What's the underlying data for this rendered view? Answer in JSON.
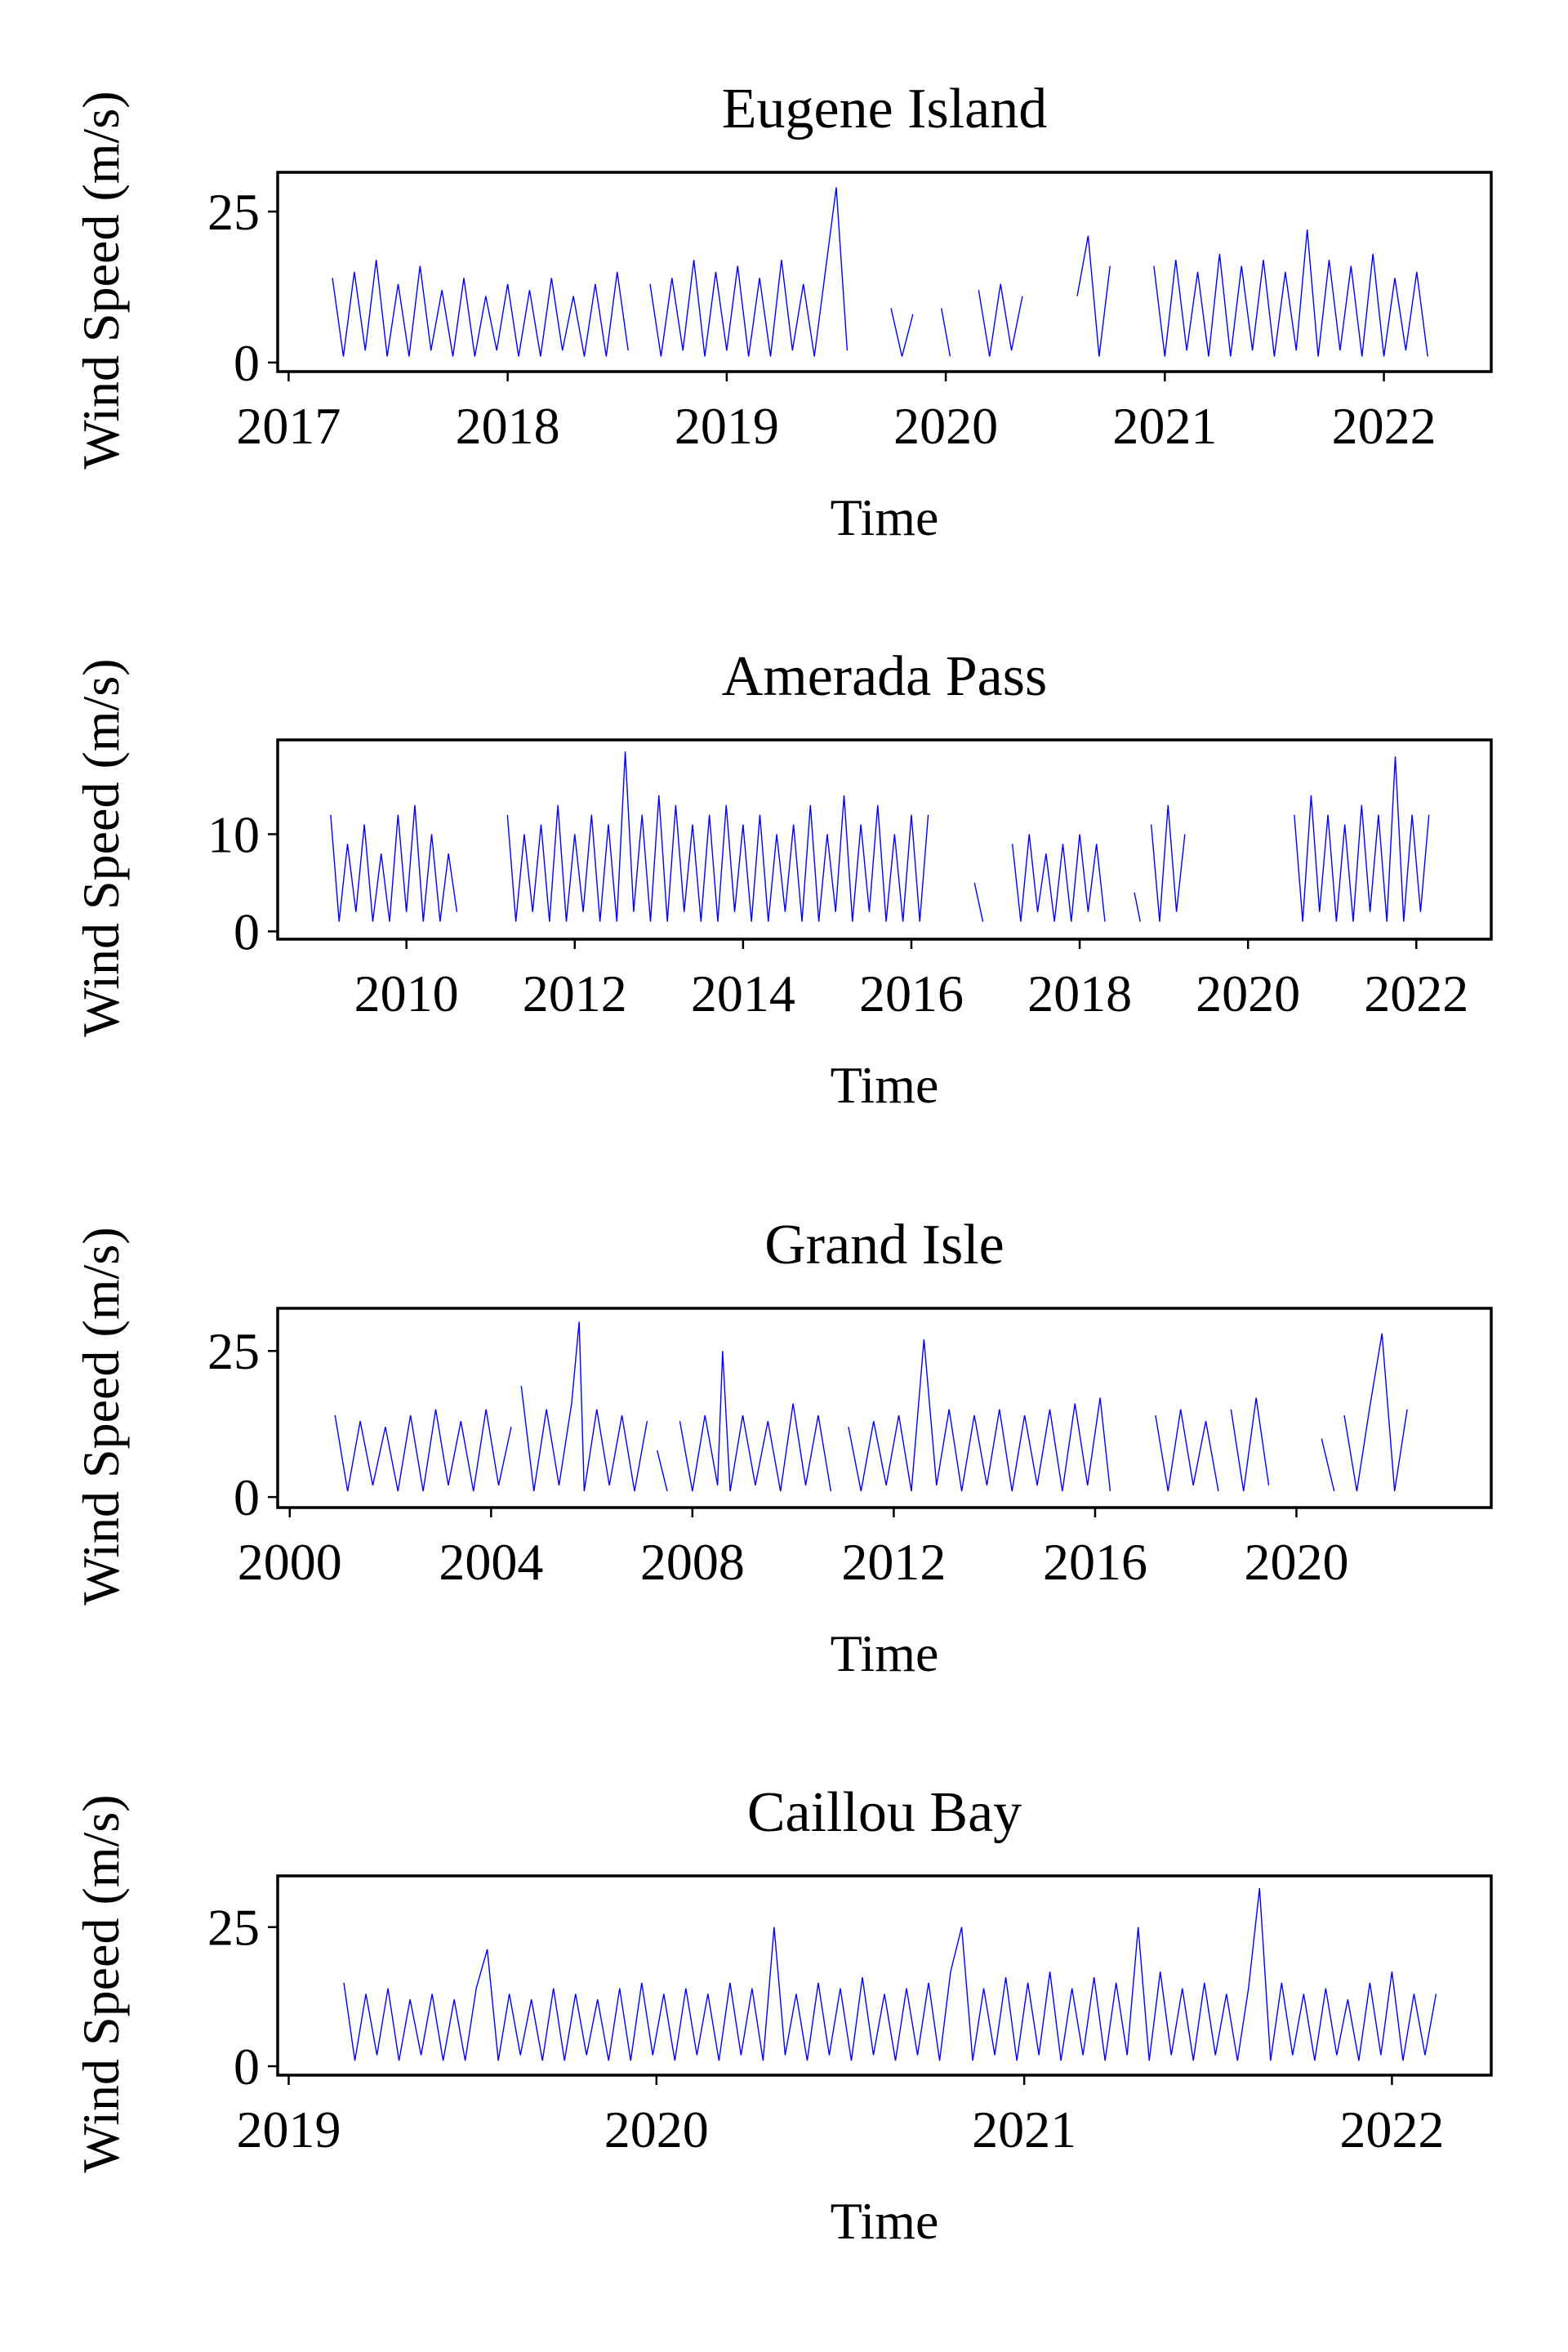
{
  "chart_data": [
    {
      "type": "line",
      "title": "Eugene Island",
      "xlabel": "Time",
      "ylabel": "Wind Speed (m/s)",
      "x": [
        2017.2,
        2017.25,
        2017.3,
        2017.35,
        2017.4,
        2017.45,
        2017.5,
        2017.55,
        2017.6,
        2017.65,
        2017.7,
        2017.75,
        2017.8,
        2017.85,
        2017.9,
        2017.95,
        2018,
        2018.05,
        2018.1,
        2018.15,
        2018.2,
        2018.25,
        2018.3,
        2018.35,
        2018.4,
        2018.45,
        2018.5,
        2018.55,
        2018.6,
        2018.65,
        2018.7,
        2018.75,
        2018.8,
        2018.85,
        2018.9,
        2018.95,
        2019,
        2019.05,
        2019.1,
        2019.15,
        2019.2,
        2019.25,
        2019.3,
        2019.35,
        2019.4,
        2019.45,
        2019.5,
        2019.55,
        2019.65,
        2019.75,
        2019.8,
        2019.85,
        2019.9,
        2019.98,
        2020.02,
        2020.08,
        2020.15,
        2020.2,
        2020.25,
        2020.3,
        2020.35,
        2020.45,
        2020.6,
        2020.65,
        2020.7,
        2020.75,
        2020.85,
        2020.95,
        2021,
        2021.05,
        2021.1,
        2021.15,
        2021.2,
        2021.25,
        2021.3,
        2021.35,
        2021.4,
        2021.45,
        2021.5,
        2021.55,
        2021.6,
        2021.65,
        2021.7,
        2021.75,
        2021.8,
        2021.85,
        2021.9,
        2021.95,
        2022,
        2022.05,
        2022.1,
        2022.15,
        2022.2
      ],
      "series": [
        {
          "color": "#0000ff",
          "values": [
            14,
            1,
            15,
            2,
            17,
            1,
            13,
            1,
            16,
            2,
            12,
            1,
            14,
            1,
            11,
            2,
            13,
            1,
            12,
            1,
            14,
            2,
            11,
            1,
            13,
            1,
            15,
            2,
            null,
            13,
            1,
            14,
            2,
            17,
            1,
            15,
            2,
            16,
            1,
            14,
            1,
            17,
            2,
            13,
            1,
            15,
            29,
            2,
            null,
            9,
            1,
            8,
            null,
            9,
            1,
            null,
            12,
            1,
            13,
            2,
            11,
            null,
            11,
            21,
            1,
            16,
            null,
            16,
            1,
            17,
            2,
            15,
            1,
            18,
            1,
            16,
            2,
            17,
            1,
            15,
            2,
            22,
            1,
            17,
            2,
            16,
            1,
            18,
            1,
            14,
            2,
            15,
            1
          ]
        }
      ],
      "xlim": [
        2016.95,
        2022.49
      ],
      "ylim": [
        -1.5,
        31.5
      ],
      "xticks": [
        2017,
        2018,
        2019,
        2020,
        2021,
        2022
      ],
      "yticks": [
        0,
        25
      ]
    },
    {
      "type": "line",
      "title": "Amerada Pass",
      "xlabel": "Time",
      "ylabel": "Wind Speed (m/s)",
      "x": [
        2009.1,
        2009.2,
        2009.3,
        2009.4,
        2009.5,
        2009.6,
        2009.7,
        2009.8,
        2009.9,
        2010,
        2010.1,
        2010.2,
        2010.3,
        2010.4,
        2010.5,
        2010.6,
        2010.9,
        2011.2,
        2011.3,
        2011.4,
        2011.5,
        2011.6,
        2011.7,
        2011.8,
        2011.9,
        2012,
        2012.1,
        2012.2,
        2012.3,
        2012.4,
        2012.5,
        2012.6,
        2012.7,
        2012.8,
        2012.9,
        2013,
        2013.1,
        2013.2,
        2013.3,
        2013.4,
        2013.5,
        2013.6,
        2013.7,
        2013.8,
        2013.9,
        2014,
        2014.1,
        2014.2,
        2014.3,
        2014.4,
        2014.5,
        2014.6,
        2014.7,
        2014.8,
        2014.9,
        2015,
        2015.1,
        2015.2,
        2015.3,
        2015.4,
        2015.5,
        2015.6,
        2015.7,
        2015.8,
        2015.9,
        2016,
        2016.1,
        2016.2,
        2016.5,
        2016.75,
        2016.85,
        2017.0,
        2017.2,
        2017.3,
        2017.4,
        2017.5,
        2017.6,
        2017.7,
        2017.8,
        2017.9,
        2018,
        2018.1,
        2018.2,
        2018.3,
        2018.5,
        2018.65,
        2018.72,
        2018.8,
        2018.85,
        2018.95,
        2019.05,
        2019.15,
        2019.25,
        2019.9,
        2020.55,
        2020.65,
        2020.75,
        2020.85,
        2020.95,
        2021.05,
        2021.15,
        2021.25,
        2021.35,
        2021.45,
        2021.55,
        2021.65,
        2021.75,
        2021.85,
        2021.95,
        2022.05,
        2022.15
      ],
      "series": [
        {
          "color": "#0000ff",
          "values": [
            12,
            1,
            9,
            2,
            11,
            1,
            8,
            1,
            12,
            2,
            13,
            1,
            10,
            1,
            8,
            2,
            null,
            12,
            1,
            10,
            2,
            11,
            1,
            13,
            1,
            10,
            2,
            12,
            1,
            11,
            1,
            18.5,
            2,
            12,
            1,
            14,
            1,
            13,
            2,
            11,
            1,
            12,
            1,
            13,
            2,
            11,
            1,
            12,
            1,
            10,
            2,
            11,
            1,
            13,
            1,
            10,
            2,
            14,
            1,
            11,
            2,
            13,
            1,
            10,
            1,
            12,
            1,
            12,
            null,
            5,
            1,
            null,
            9,
            1,
            10,
            2,
            8,
            1,
            9,
            1,
            10,
            2,
            9,
            1,
            null,
            4,
            1,
            null,
            11,
            1,
            13,
            2,
            10,
            null,
            12,
            1,
            14,
            2,
            12,
            1,
            11,
            1,
            13,
            2,
            12,
            1,
            18,
            1,
            12,
            2,
            12
          ]
        }
      ],
      "xlim": [
        2008.47,
        2022.89
      ],
      "ylim": [
        -0.8,
        19.7
      ],
      "xticks": [
        2010,
        2012,
        2014,
        2016,
        2018,
        2020,
        2022
      ],
      "yticks": [
        0,
        10
      ]
    },
    {
      "type": "line",
      "title": "Grand Isle",
      "xlabel": "Time",
      "ylabel": "Wind Speed (m/s)",
      "x": [
        2000.9,
        2001.15,
        2001.4,
        2001.65,
        2001.9,
        2002.15,
        2002.4,
        2002.65,
        2002.9,
        2003.15,
        2003.4,
        2003.65,
        2003.9,
        2004.15,
        2004.4,
        2004.5,
        2004.6,
        2004.85,
        2005.1,
        2005.35,
        2005.6,
        2005.75,
        2005.85,
        2006.1,
        2006.35,
        2006.6,
        2006.85,
        2007.1,
        2007.2,
        2007.3,
        2007.5,
        2007.62,
        2007.75,
        2008,
        2008.25,
        2008.5,
        2008.6,
        2008.75,
        2009,
        2009.25,
        2009.5,
        2009.75,
        2010,
        2010.25,
        2010.5,
        2010.75,
        2010.9,
        2011.1,
        2011.35,
        2011.6,
        2011.85,
        2012.1,
        2012.35,
        2012.6,
        2012.85,
        2013.1,
        2013.35,
        2013.6,
        2013.85,
        2014.1,
        2014.35,
        2014.6,
        2014.85,
        2015.1,
        2015.35,
        2015.6,
        2015.85,
        2016.1,
        2016.3,
        2016.8,
        2017.2,
        2017.45,
        2017.7,
        2017.95,
        2018.2,
        2018.45,
        2018.58,
        2018.7,
        2018.95,
        2019.2,
        2019.45,
        2020,
        2020.5,
        2020.75,
        2020.85,
        2020.95,
        2021.2,
        2021.45,
        2021.7,
        2021.95,
        2022.2
      ],
      "series": [
        {
          "color": "#0000ff",
          "values": [
            14,
            1,
            13,
            2,
            12,
            1,
            14,
            1,
            15,
            2,
            13,
            1,
            15,
            2,
            12,
            null,
            19,
            1,
            15,
            2,
            16,
            30,
            1,
            15,
            2,
            14,
            1,
            13,
            null,
            8,
            1,
            null,
            13,
            1,
            14,
            2,
            25,
            1,
            14,
            2,
            13,
            1,
            16,
            2,
            14,
            1,
            null,
            12,
            1,
            13,
            2,
            14,
            1,
            27,
            2,
            15,
            1,
            14,
            2,
            15,
            1,
            14,
            2,
            15,
            1,
            16,
            2,
            17,
            1,
            null,
            14,
            1,
            15,
            2,
            13,
            1,
            null,
            15,
            1,
            17,
            2,
            null,
            10,
            1,
            null,
            14,
            1,
            15,
            28,
            1,
            15
          ]
        }
      ],
      "xlim": [
        1999.76,
        2023.87
      ],
      "ylim": [
        -1.8,
        32.3
      ],
      "xticks": [
        2000,
        2004,
        2008,
        2012,
        2016,
        2020
      ],
      "yticks": [
        0,
        25
      ]
    },
    {
      "type": "line",
      "title": "Caillou Bay",
      "xlabel": "Time",
      "ylabel": "Wind Speed (m/s)",
      "x": [
        2019.15,
        2019.18,
        2019.21,
        2019.24,
        2019.27,
        2019.3,
        2019.33,
        2019.36,
        2019.39,
        2019.42,
        2019.45,
        2019.48,
        2019.51,
        2019.54,
        2019.57,
        2019.6,
        2019.63,
        2019.66,
        2019.69,
        2019.72,
        2019.75,
        2019.78,
        2019.81,
        2019.84,
        2019.87,
        2019.9,
        2019.93,
        2019.96,
        2019.99,
        2020.02,
        2020.05,
        2020.08,
        2020.11,
        2020.14,
        2020.17,
        2020.2,
        2020.23,
        2020.26,
        2020.29,
        2020.32,
        2020.35,
        2020.38,
        2020.41,
        2020.44,
        2020.47,
        2020.5,
        2020.53,
        2020.56,
        2020.59,
        2020.62,
        2020.65,
        2020.68,
        2020.71,
        2020.74,
        2020.77,
        2020.8,
        2020.83,
        2020.86,
        2020.89,
        2020.92,
        2020.95,
        2020.98,
        2021.01,
        2021.04,
        2021.07,
        2021.1,
        2021.13,
        2021.16,
        2021.19,
        2021.22,
        2021.25,
        2021.28,
        2021.31,
        2021.34,
        2021.37,
        2021.4,
        2021.43,
        2021.46,
        2021.49,
        2021.52,
        2021.55,
        2021.58,
        2021.61,
        2021.64,
        2021.67,
        2021.7,
        2021.73,
        2021.76,
        2021.79,
        2021.82,
        2021.85,
        2021.88,
        2021.91,
        2021.94,
        2021.97,
        2022,
        2022.03,
        2022.06,
        2022.09,
        2022.12
      ],
      "series": [
        {
          "color": "#0000ff",
          "values": [
            15,
            1,
            13,
            2,
            14,
            1,
            12,
            2,
            13,
            1,
            12,
            1,
            14,
            21,
            1,
            13,
            2,
            12,
            1,
            14,
            1,
            13,
            2,
            12,
            1,
            14,
            1,
            15,
            2,
            13,
            1,
            14,
            2,
            13,
            1,
            15,
            2,
            14,
            1,
            25,
            2,
            13,
            1,
            15,
            2,
            14,
            1,
            16,
            2,
            13,
            1,
            14,
            2,
            15,
            1,
            17,
            25,
            1,
            14,
            2,
            16,
            1,
            15,
            2,
            17,
            1,
            14,
            2,
            16,
            1,
            15,
            2,
            25,
            1,
            17,
            2,
            14,
            1,
            15,
            2,
            13,
            1,
            14,
            32,
            1,
            15,
            2,
            13,
            1,
            14,
            2,
            12,
            1,
            15,
            2,
            17,
            1,
            13,
            2,
            13
          ]
        }
      ],
      "xlim": [
        2018.97,
        2022.27
      ],
      "ylim": [
        -1.6,
        34.2
      ],
      "xticks": [
        2019,
        2020,
        2021,
        2022
      ],
      "yticks": [
        0,
        25
      ]
    }
  ]
}
